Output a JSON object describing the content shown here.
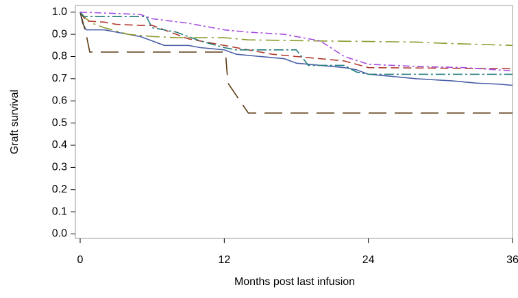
{
  "chart_data": {
    "type": "line",
    "x_label": "Months post last infusion",
    "y_label": "Graft survival",
    "xlim": [
      -0.4,
      36
    ],
    "ylim": [
      -0.02,
      1.03
    ],
    "xticks": [
      0,
      12,
      24,
      36
    ],
    "yticks": [
      {
        "value": 0,
        "label": "0.0"
      },
      0.1,
      0.2,
      0.3,
      0.4,
      0.5,
      0.6,
      0.7,
      0.8,
      0.9,
      {
        "value": 1,
        "label": "1.0"
      }
    ],
    "series": [
      {
        "color": "#4a5fa8",
        "x": [
          0,
          0.2,
          0.5,
          2,
          3,
          4,
          5,
          6,
          7,
          9,
          10,
          12,
          13,
          15,
          17,
          18,
          20,
          22,
          23,
          24,
          26,
          28,
          31,
          33,
          35,
          36
        ],
        "values": [
          1.0,
          0.95,
          0.92,
          0.92,
          0.91,
          0.9,
          0.89,
          0.87,
          0.85,
          0.85,
          0.84,
          0.83,
          0.81,
          0.8,
          0.79,
          0.77,
          0.76,
          0.75,
          0.74,
          0.72,
          0.71,
          0.7,
          0.69,
          0.68,
          0.675,
          0.67
        ]
      },
      {
        "color": "#5c3a10",
        "x": [
          0,
          0.5,
          0.8,
          12.1,
          12.3,
          14,
          36
        ],
        "values": [
          1.0,
          0.9,
          0.82,
          0.82,
          0.68,
          0.545,
          0.545
        ]
      },
      {
        "color": "#8b9a2a",
        "x": [
          0,
          0.5,
          1,
          2,
          4,
          6,
          8,
          12,
          14,
          20,
          28,
          30,
          36
        ],
        "values": [
          1.0,
          0.97,
          0.95,
          0.93,
          0.9,
          0.89,
          0.885,
          0.885,
          0.875,
          0.87,
          0.865,
          0.86,
          0.85
        ]
      },
      {
        "color": "#b03a2e",
        "x": [
          0,
          0.5,
          2,
          3,
          5,
          6,
          7,
          9,
          12,
          14,
          16,
          18,
          20,
          22,
          24,
          36
        ],
        "values": [
          1.0,
          0.96,
          0.955,
          0.945,
          0.94,
          0.94,
          0.92,
          0.88,
          0.85,
          0.83,
          0.81,
          0.8,
          0.79,
          0.78,
          0.75,
          0.745
        ]
      },
      {
        "color": "#1f7a7a",
        "x": [
          0,
          0.3,
          5.5,
          6,
          8,
          10,
          12,
          13,
          18,
          19,
          22,
          23,
          24,
          36
        ],
        "values": [
          1.0,
          0.98,
          0.98,
          0.93,
          0.91,
          0.87,
          0.84,
          0.83,
          0.83,
          0.76,
          0.76,
          0.73,
          0.72,
          0.72
        ]
      },
      {
        "color": "#a64ce0",
        "x": [
          0,
          5,
          6,
          9,
          12,
          14,
          17,
          20,
          22,
          24,
          28,
          32,
          36
        ],
        "values": [
          1.0,
          0.99,
          0.97,
          0.95,
          0.92,
          0.91,
          0.9,
          0.87,
          0.8,
          0.765,
          0.755,
          0.75,
          0.735
        ]
      }
    ]
  }
}
